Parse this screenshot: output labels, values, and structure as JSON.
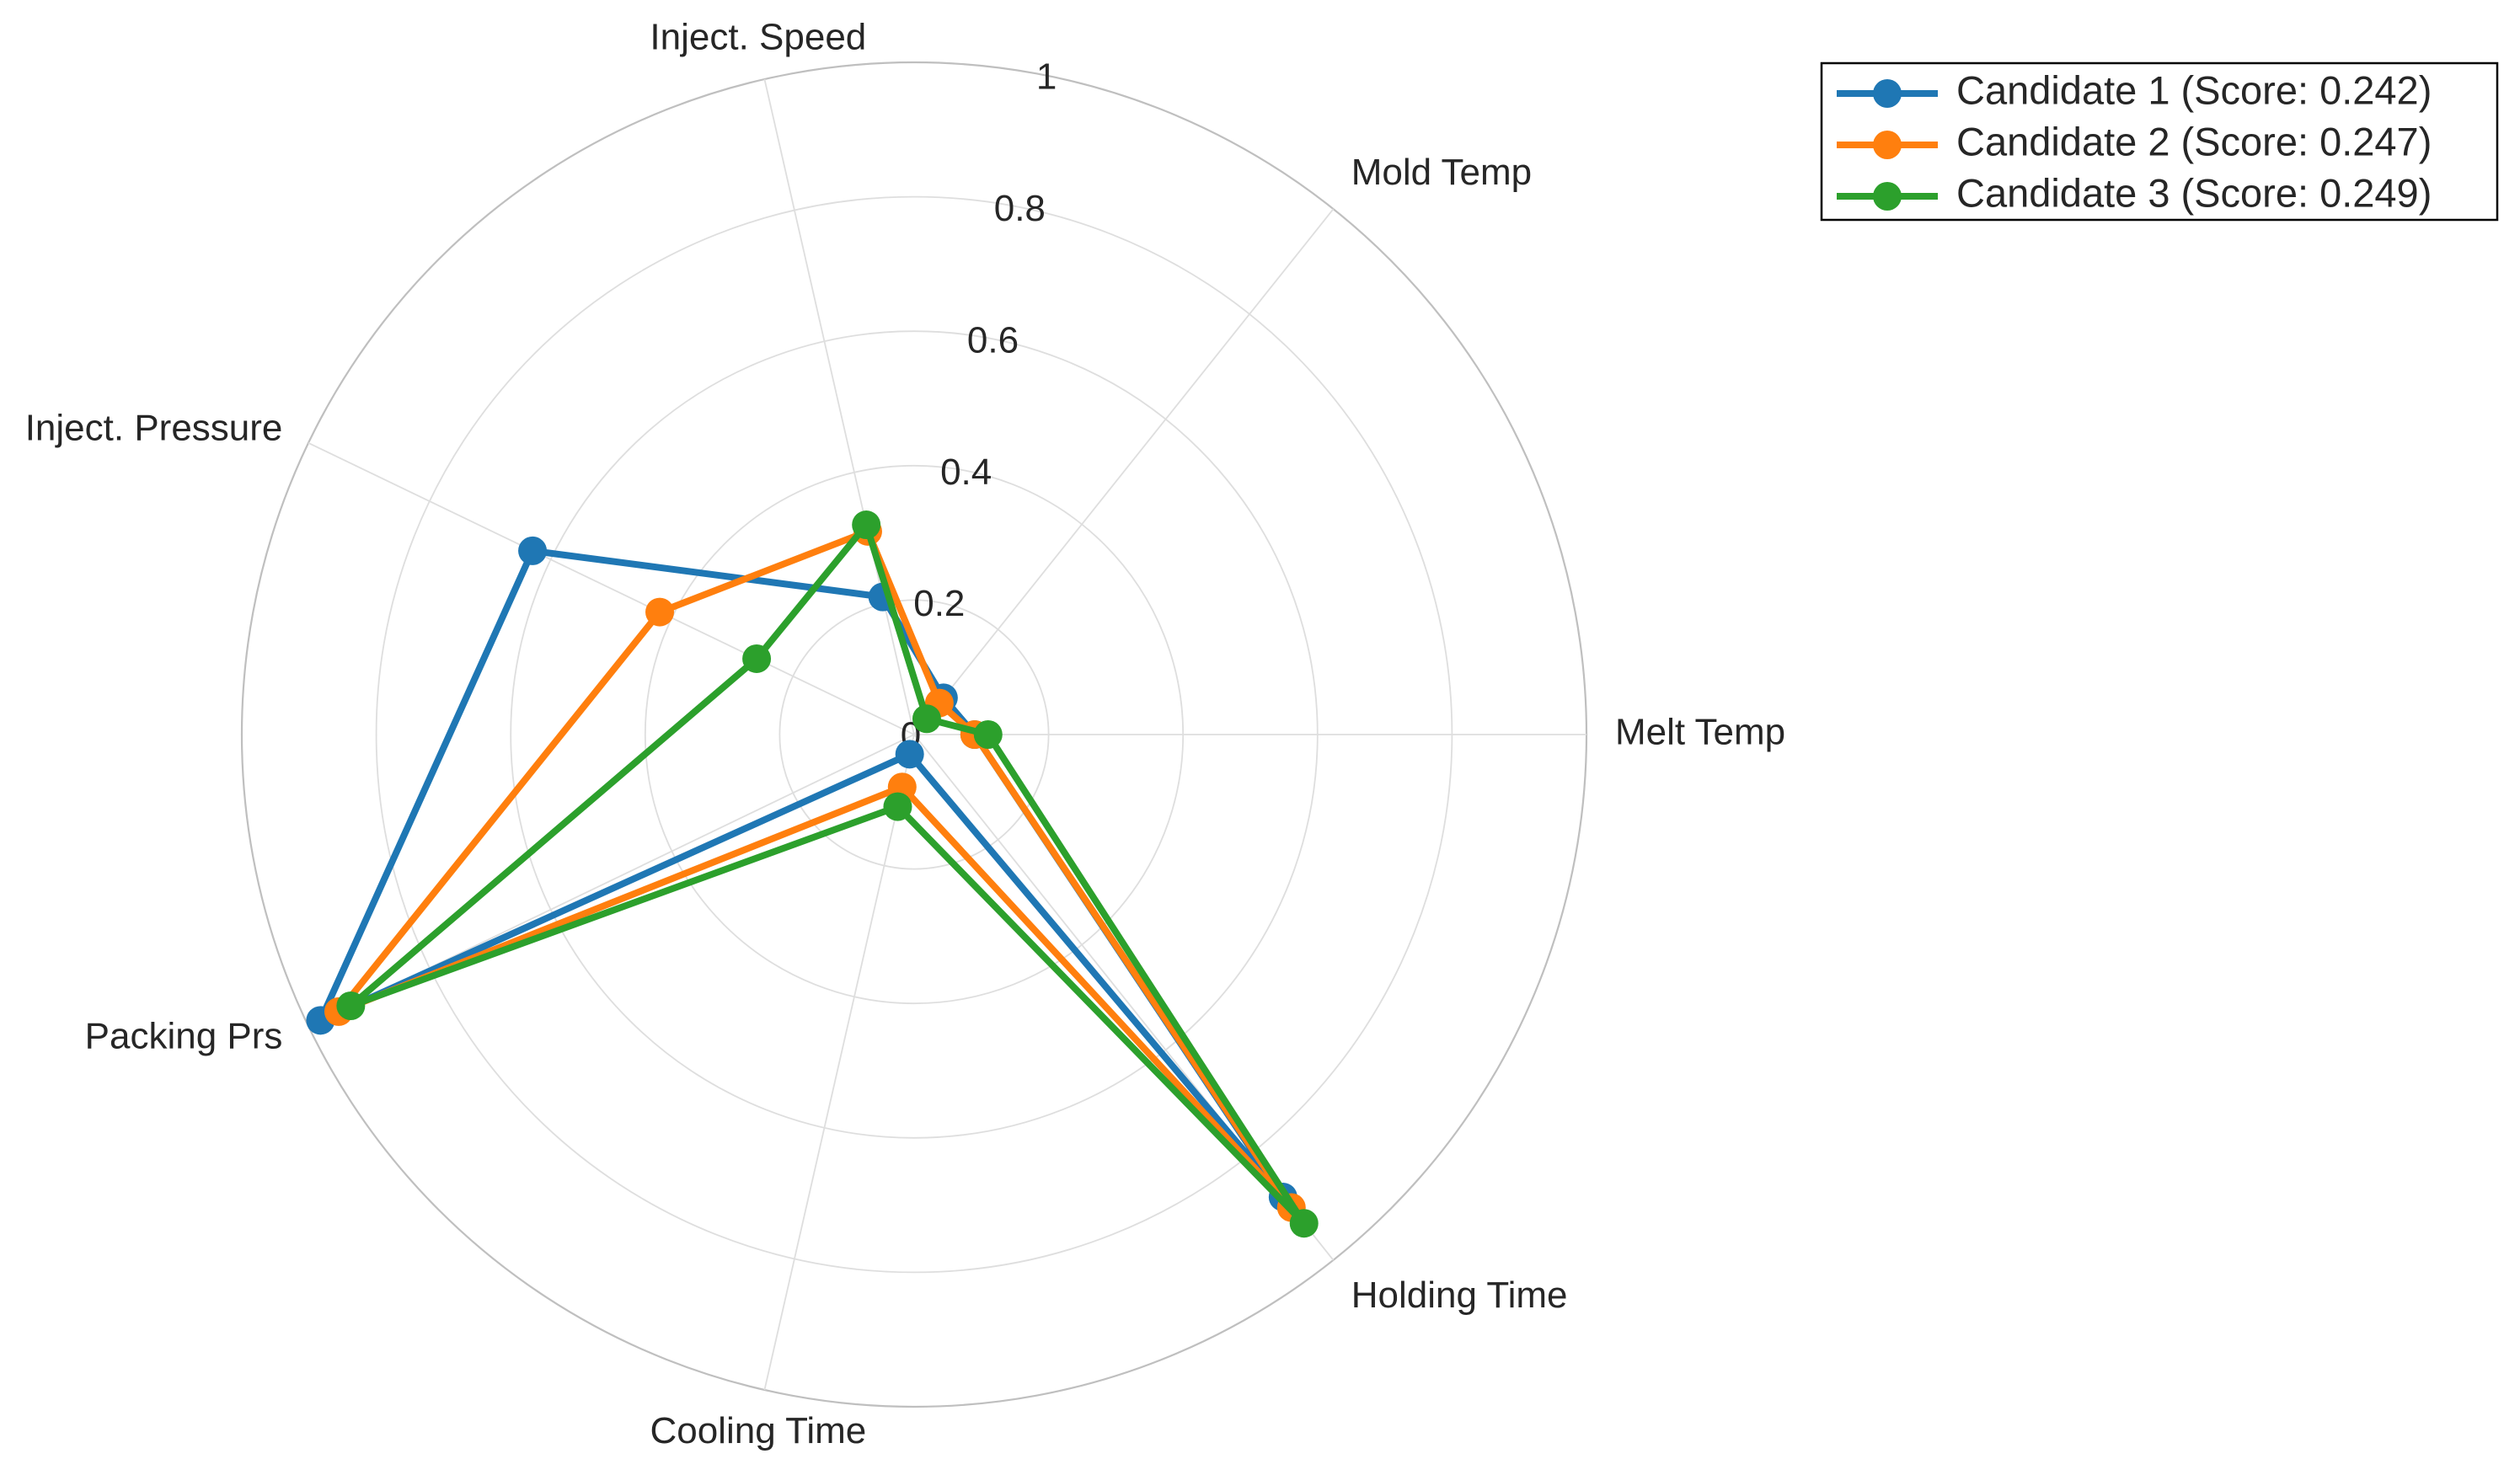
{
  "chart_data": {
    "type": "radar",
    "title": "",
    "axes": [
      "Melt Temp",
      "Mold Temp",
      "Inject. Speed",
      "Inject. Pressure",
      "Packing Prs",
      "Cooling Time",
      "Holding Time"
    ],
    "rlim": [
      0,
      1
    ],
    "rticks": [
      0.2,
      0.4,
      0.6,
      0.8,
      1
    ],
    "rtick_labels": [
      "0.2",
      "0.4",
      "0.6",
      "0.8",
      "1"
    ],
    "origin_label": "0",
    "grid": true,
    "legend_position": "top-right",
    "series": [
      {
        "name": "Candidate 1 (Score: 0.242)",
        "color": "#1f77b4",
        "values": [
          0.09,
          0.07,
          0.21,
          0.63,
          0.98,
          0.03,
          0.88
        ]
      },
      {
        "name": "Candidate 2 (Score: 0.247)",
        "color": "#ff7f0e",
        "values": [
          0.09,
          0.06,
          0.31,
          0.42,
          0.95,
          0.08,
          0.9
        ]
      },
      {
        "name": "Candidate 3 (Score: 0.249)",
        "color": "#2ca02c",
        "values": [
          0.11,
          0.03,
          0.32,
          0.26,
          0.93,
          0.11,
          0.93
        ]
      }
    ]
  }
}
